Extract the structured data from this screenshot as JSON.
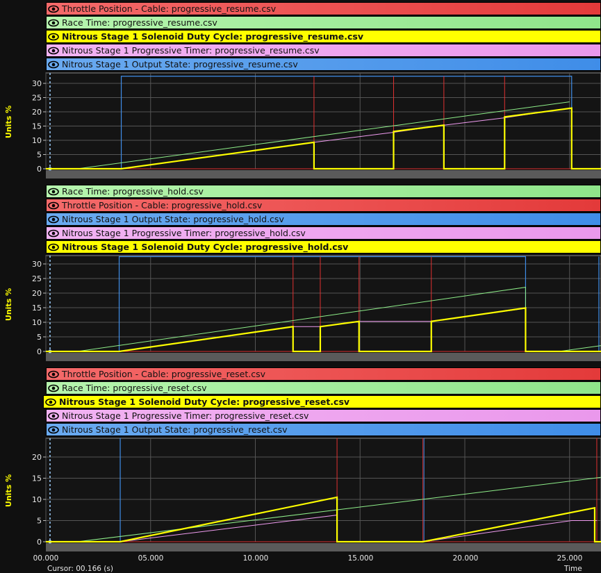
{
  "icons": {
    "eye": "eye-icon"
  },
  "panels": [
    {
      "ylabel": "Units %",
      "yticks": [
        "0",
        "5",
        "10",
        "15",
        "20",
        "25",
        "30"
      ],
      "legend": [
        {
          "label": "Throttle Position - Cable: progressive_resume.csv",
          "color": "red"
        },
        {
          "label": "Race Time: progressive_resume.csv",
          "color": "green"
        },
        {
          "label": "Nitrous Stage 1 Solenoid Duty Cycle: progressive_resume.csv",
          "color": "yellow"
        },
        {
          "label": "Nitrous Stage 1 Progressive Timer: progressive_resume.csv",
          "color": "pink"
        },
        {
          "label": "Nitrous Stage 1 Output State: progressive_resume.csv",
          "color": "blue"
        }
      ]
    },
    {
      "ylabel": "Units %",
      "yticks": [
        "0",
        "5",
        "10",
        "15",
        "20",
        "25",
        "30"
      ],
      "legend": [
        {
          "label": "Race Time: progressive_hold.csv",
          "color": "green"
        },
        {
          "label": "Throttle Position - Cable: progressive_hold.csv",
          "color": "red"
        },
        {
          "label": "Nitrous Stage 1 Output State: progressive_hold.csv",
          "color": "blue"
        },
        {
          "label": "Nitrous Stage 1 Progressive Timer: progressive_hold.csv",
          "color": "pink"
        },
        {
          "label": "Nitrous Stage 1 Solenoid Duty Cycle: progressive_hold.csv",
          "color": "yellow"
        }
      ]
    },
    {
      "ylabel": "Units %",
      "yticks": [
        "0",
        "5",
        "10",
        "15",
        "20"
      ],
      "legend": [
        {
          "label": "Throttle Position - Cable: progressive_reset.csv",
          "color": "red"
        },
        {
          "label": "Race Time: progressive_reset.csv",
          "color": "green"
        },
        {
          "label": "Nitrous Stage 1 Solenoid Duty Cycle: progressive_reset.csv",
          "color": "yellow"
        },
        {
          "label": "Nitrous Stage 1 Progressive Timer: progressive_reset.csv",
          "color": "pink"
        },
        {
          "label": "Nitrous Stage 1 Output State: progressive_reset.csv",
          "color": "blue"
        }
      ]
    }
  ],
  "xaxis": {
    "ticks": [
      "00.000",
      "05.000",
      "10.000",
      "15.000",
      "20.000",
      "25.000"
    ]
  },
  "status": {
    "left": "Cursor: 00.166 (s)",
    "right": "Time"
  },
  "colors": {
    "red": "#e03030",
    "green": "#8ff08a",
    "yellow": "#ffff00",
    "pink": "#f09cf0",
    "blue": "#3f8de8",
    "grid": "#555555",
    "plot_bg": "#141414"
  }
}
